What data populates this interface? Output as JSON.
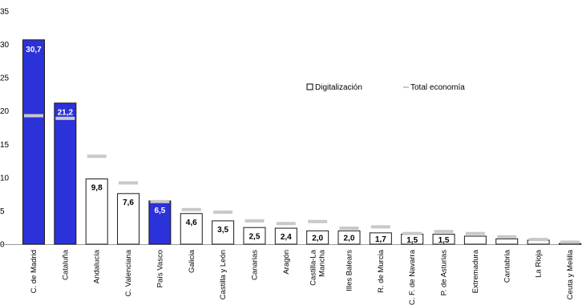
{
  "chart_data": {
    "type": "bar",
    "ylim": [
      0,
      35
    ],
    "yticks": [
      0,
      5,
      10,
      15,
      20,
      25,
      30,
      35
    ],
    "grid": false,
    "legend_position": "top-right",
    "categories": [
      "C. de Madrid",
      "Cataluña",
      "Andalucía",
      "C. Valenciana",
      "País Vasco",
      "Galicia",
      "Castilla y León",
      "Canarias",
      "Aragón",
      "Castilla-La Mancha",
      "Illes Balears",
      "R. de Murcia",
      "C. F. de Navarra",
      "P. de Asturias",
      "Extremadura",
      "Cantabria",
      "La Rioja",
      "Ceuta y Melilla"
    ],
    "category_label_lines": [
      [
        "C. de Madrid"
      ],
      [
        "Cataluña"
      ],
      [
        "Andalucía"
      ],
      [
        "C. Valenciana"
      ],
      [
        "País Vasco"
      ],
      [
        "Galicia"
      ],
      [
        "Castilla y León"
      ],
      [
        "Canarias"
      ],
      [
        "Aragón"
      ],
      [
        "Castilla-La",
        "Mancha"
      ],
      [
        "Illes Balears"
      ],
      [
        "R. de Murcia"
      ],
      [
        "C. F. de Navarra"
      ],
      [
        "P. de Asturias"
      ],
      [
        "Extremadura"
      ],
      [
        "Cantabria"
      ],
      [
        "La Rioja"
      ],
      [
        "Ceuta y Melilla"
      ]
    ],
    "series": [
      {
        "name": "Digitalización",
        "values": [
          30.7,
          21.2,
          9.8,
          7.6,
          6.5,
          4.6,
          3.5,
          2.5,
          2.4,
          2.0,
          2.0,
          1.7,
          1.5,
          1.5,
          1.2,
          0.8,
          0.6,
          0.1
        ],
        "data_labels": [
          "30,7",
          "21,2",
          "9,8",
          "7,6",
          "6,5",
          "4,6",
          "3,5",
          "2,5",
          "2,4",
          "2,0",
          "2,0",
          "1,7",
          "1,5",
          "1,5",
          "",
          "",
          "",
          ""
        ],
        "highlighted": [
          true,
          true,
          false,
          false,
          true,
          false,
          false,
          false,
          false,
          false,
          false,
          false,
          false,
          false,
          false,
          false,
          false,
          false
        ]
      },
      {
        "name": "Total economía",
        "values": [
          19.3,
          18.9,
          13.2,
          9.2,
          6.4,
          5.2,
          4.8,
          3.5,
          3.1,
          3.4,
          2.4,
          2.6,
          1.6,
          1.9,
          1.6,
          1.1,
          0.7,
          0.3
        ]
      }
    ],
    "legend": [
      {
        "label": "Digitalización",
        "symbol": "box"
      },
      {
        "label": "Total economía",
        "symbol": "dash"
      }
    ],
    "colors": {
      "highlight_fill": "#2b32d9",
      "plain_fill": "#ffffff",
      "bar_stroke": "#1a1a1a",
      "total_marker": "#c8c8c8",
      "label_on_dark": "#ffffff",
      "label_on_light": "#000000"
    }
  }
}
